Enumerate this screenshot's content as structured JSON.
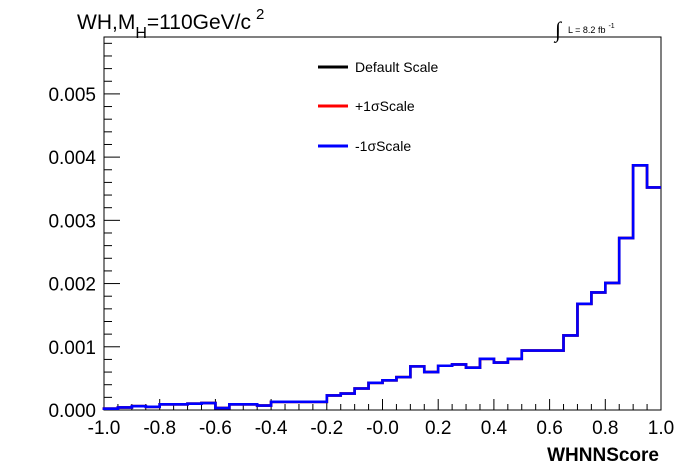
{
  "chart_data": {
    "type": "line",
    "title": {
      "main": "WH,M",
      "subscript": "H",
      "rest": "=110GeV/c",
      "superscript": "2"
    },
    "luminosity": {
      "integral": "∫",
      "text": "L = 8.2 fb",
      "superscript": "-1"
    },
    "xlabel": "WHNNScore",
    "ylabel": "",
    "xlim": [
      -1.0,
      1.0
    ],
    "ylim": [
      0,
      0.0059
    ],
    "x_tick_labels": [
      "-1.0",
      "-0.8",
      "-0.6",
      "-0.4",
      "-0.2",
      "-0.0",
      "0.2",
      "0.4",
      "0.6",
      "0.8",
      "1.0"
    ],
    "x_ticks": [
      -1.0,
      -0.8,
      -0.6,
      -0.4,
      -0.2,
      0.0,
      0.2,
      0.4,
      0.6,
      0.8,
      1.0
    ],
    "y_tick_labels": [
      "0.000",
      "0.001",
      "0.002",
      "0.003",
      "0.004",
      "0.005"
    ],
    "y_ticks": [
      0.0,
      0.001,
      0.002,
      0.003,
      0.004,
      0.005
    ],
    "bin_edges": [
      -1.0,
      -0.95,
      -0.9,
      -0.85,
      -0.8,
      -0.75,
      -0.7,
      -0.65,
      -0.6,
      -0.55,
      -0.5,
      -0.45,
      -0.4,
      -0.35,
      -0.3,
      -0.25,
      -0.2,
      -0.15,
      -0.1,
      -0.05,
      0.0,
      0.05,
      0.1,
      0.15,
      0.2,
      0.25,
      0.3,
      0.35,
      0.4,
      0.45,
      0.5,
      0.55,
      0.6,
      0.65,
      0.7,
      0.75,
      0.8,
      0.85,
      0.9,
      0.95,
      1.0
    ],
    "series": [
      {
        "name": "Default Scale",
        "color": "#000000",
        "values": [
          2e-05,
          4e-05,
          6e-05,
          5e-05,
          9e-05,
          9e-05,
          0.0001,
          0.00011,
          3e-05,
          9e-05,
          9e-05,
          7e-05,
          0.00013,
          0.00013,
          0.00013,
          0.00013,
          0.00023,
          0.00026,
          0.00034,
          0.00043,
          0.00047,
          0.00052,
          0.00069,
          0.0006,
          0.0007,
          0.00072,
          0.00067,
          0.00081,
          0.00075,
          0.00081,
          0.00094,
          0.00094,
          0.00094,
          0.00118,
          0.00168,
          0.00186,
          0.00201,
          0.00272,
          0.00387,
          0.00352
        ]
      },
      {
        "name": "+1σScale",
        "color": "#ff0000",
        "values": [
          2e-05,
          4e-05,
          6e-05,
          5e-05,
          9e-05,
          9e-05,
          0.0001,
          0.00011,
          3e-05,
          9e-05,
          9e-05,
          7e-05,
          0.00013,
          0.00013,
          0.00013,
          0.00013,
          0.00023,
          0.00026,
          0.00034,
          0.00043,
          0.00047,
          0.00052,
          0.00069,
          0.0006,
          0.0007,
          0.00072,
          0.00067,
          0.00081,
          0.00075,
          0.00081,
          0.00094,
          0.00094,
          0.00094,
          0.00118,
          0.00168,
          0.00186,
          0.00201,
          0.00272,
          0.00387,
          0.00352
        ]
      },
      {
        "name": "-1σScale",
        "color": "#0000ff",
        "values": [
          2e-05,
          4e-05,
          6e-05,
          5e-05,
          9e-05,
          9e-05,
          0.0001,
          0.00011,
          3e-05,
          9e-05,
          9e-05,
          7e-05,
          0.00013,
          0.00013,
          0.00013,
          0.00013,
          0.00023,
          0.00026,
          0.00034,
          0.00043,
          0.00047,
          0.00052,
          0.00069,
          0.0006,
          0.0007,
          0.00072,
          0.00067,
          0.00081,
          0.00075,
          0.00081,
          0.00094,
          0.00094,
          0.00094,
          0.00118,
          0.00168,
          0.00186,
          0.00201,
          0.00272,
          0.00387,
          0.00352
        ]
      }
    ],
    "legend": {
      "position": "top-center"
    },
    "grid": false
  }
}
